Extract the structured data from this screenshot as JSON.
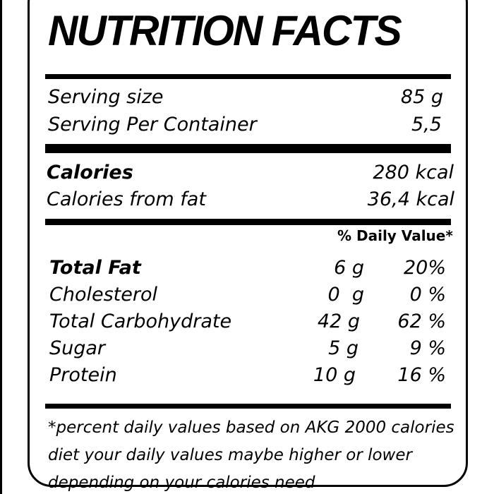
{
  "label": {
    "title": "NUTRITION FACTS",
    "serving": {
      "size_label": "Serving size",
      "size_value": "85 g",
      "per_container_label": "Serving Per Container",
      "per_container_value": "5,5"
    },
    "calories": {
      "label": "Calories",
      "value": "280 kcal",
      "from_fat_label": "Calories from fat",
      "from_fat_value": "36,4 kcal"
    },
    "daily_value_header": "% Daily Value*",
    "nutrients": [
      {
        "name": "Total Fat",
        "amount": "6 g",
        "dv": "20%"
      },
      {
        "name": "Cholesterol",
        "amount": "0  g",
        "dv": "0 %"
      },
      {
        "name": "Total Carbohydrate",
        "amount": "42 g",
        "dv": "62 %"
      },
      {
        "name": "Sugar",
        "amount": "5 g",
        "dv": "9 %"
      },
      {
        "name": "Protein",
        "amount": "10 g",
        "dv": "16 %"
      }
    ],
    "footnote": [
      "*percent daily values based on AKG 2000 calories",
      "diet your daily values maybe higher or lower",
      "depending on your calories need"
    ]
  }
}
